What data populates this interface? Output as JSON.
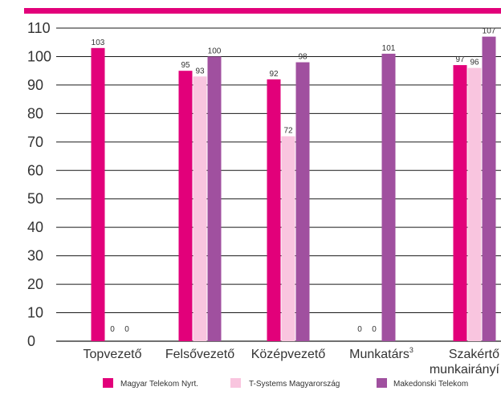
{
  "chart_data": {
    "type": "bar",
    "categories": [
      "Topvezető",
      "Felsővezető",
      "Középvezető",
      "Munkatárs",
      "Szakértő munkairányí"
    ],
    "category_superscripts": [
      "",
      "",
      "",
      "3",
      ""
    ],
    "series": [
      {
        "name": "Magyar Telekom Nyrt.",
        "values": [
          103,
          95,
          92,
          0,
          97
        ],
        "color": "#e2007a"
      },
      {
        "name": "T-Systems Magyarország",
        "values": [
          0,
          93,
          72,
          0,
          96
        ],
        "color": "#f9c5df"
      },
      {
        "name": "Makedonski Telekom",
        "values": [
          0,
          100,
          98,
          101,
          107
        ],
        "color": "#a0509f"
      }
    ],
    "ylim": [
      0,
      110
    ],
    "yticks": [
      0,
      10,
      20,
      30,
      40,
      50,
      60,
      70,
      80,
      90,
      100,
      110
    ],
    "grid": true,
    "legend_position": "bottom",
    "title": "",
    "xlabel": "",
    "ylabel": ""
  },
  "colors": {
    "accent_bar": "#e2007a",
    "grid": "#1a1a1a",
    "text": "#333333"
  }
}
